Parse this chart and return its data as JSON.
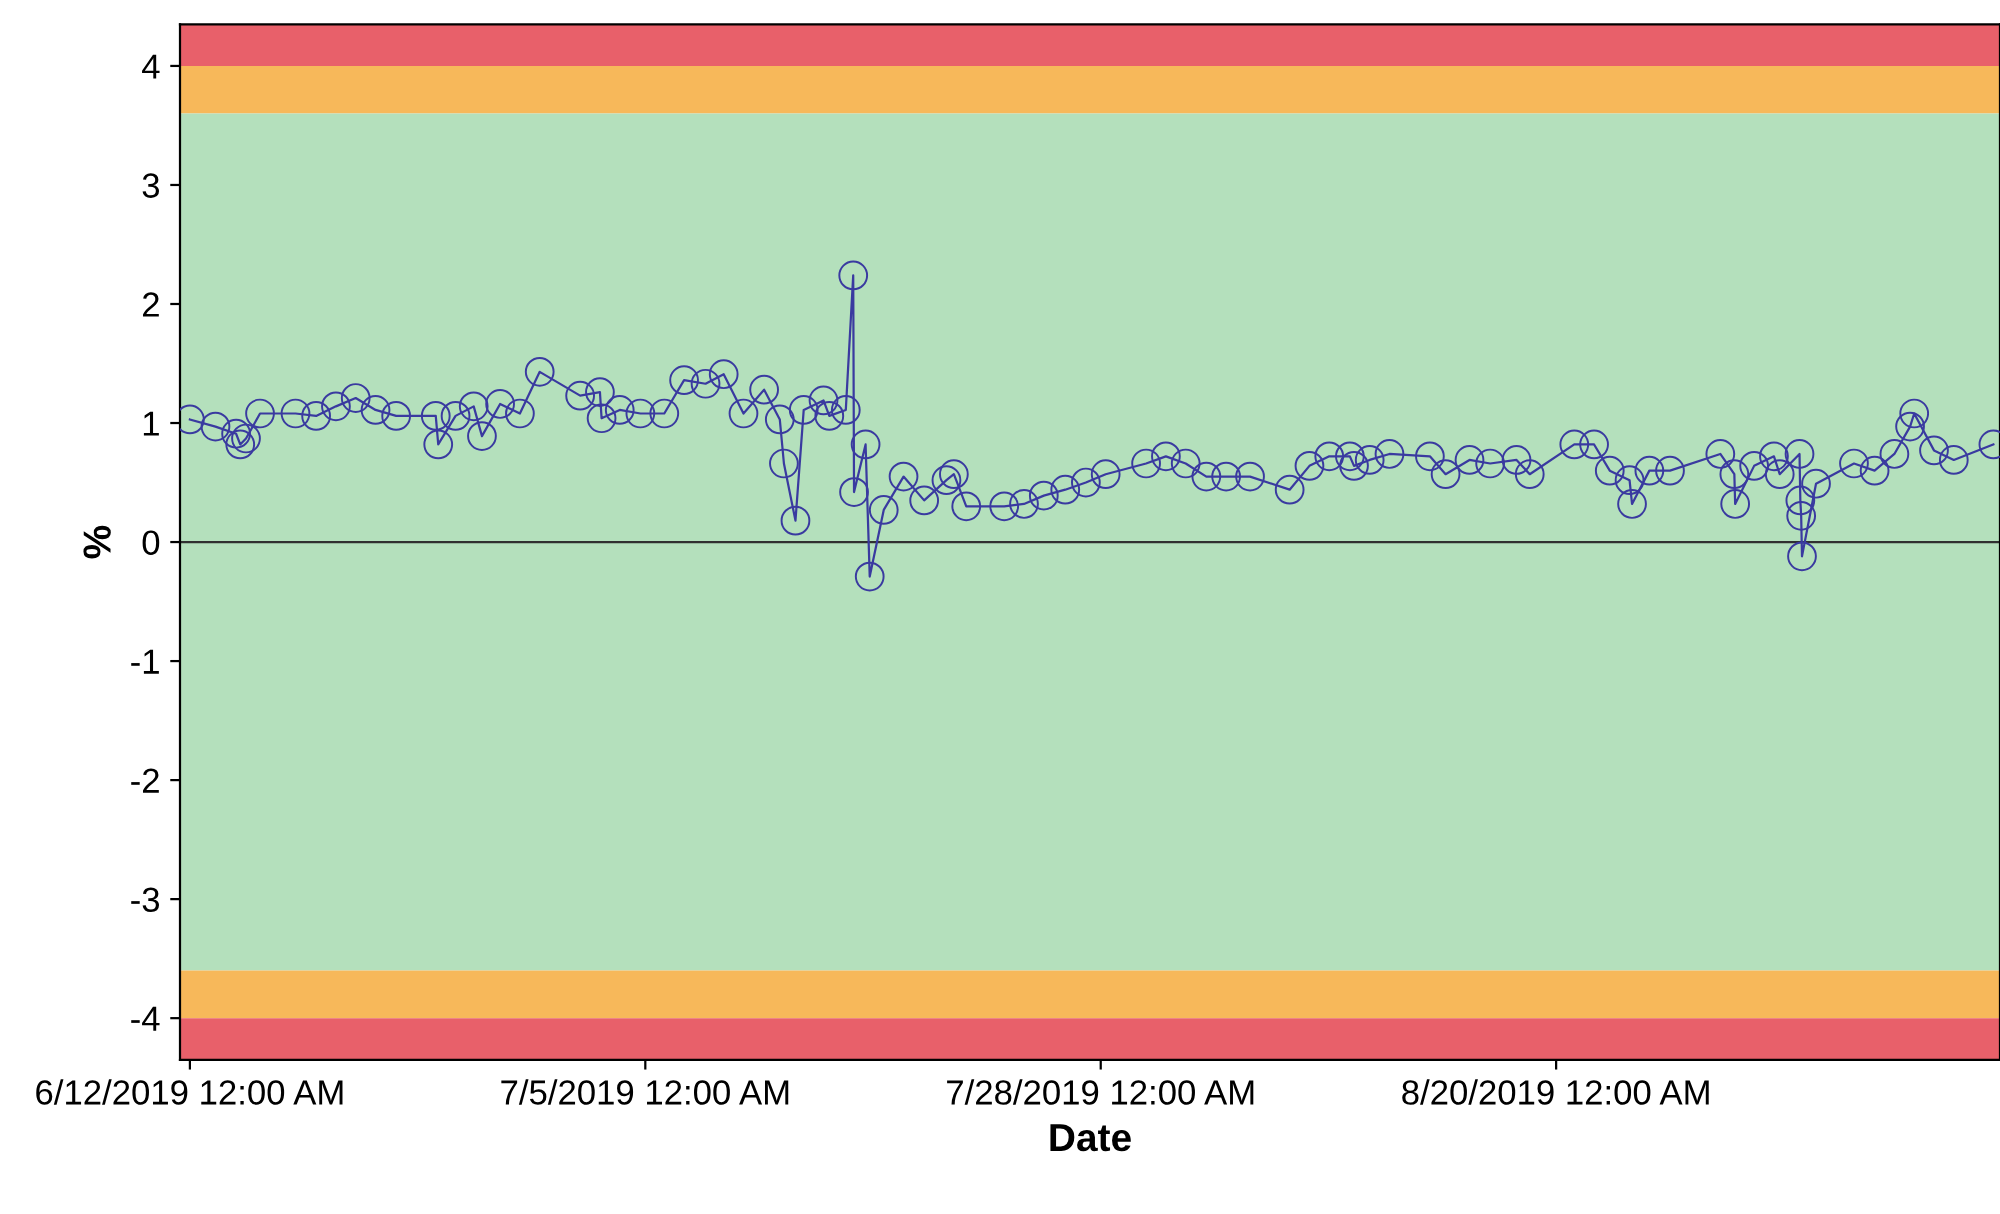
{
  "chart_data": {
    "type": "line",
    "xlabel": "Date",
    "ylabel": "%",
    "x": [
      "2019-06-12T00:00",
      "2019-06-13T07:00",
      "2019-06-14T08:00",
      "2019-06-14T13:00",
      "2019-06-14T20:00",
      "2019-06-15T13:00",
      "2019-06-17T08:00",
      "2019-06-18T09:00",
      "2019-06-19T09:00",
      "2019-06-20T09:00",
      "2019-06-21T09:00",
      "2019-06-22T10:00",
      "2019-06-24T10:00",
      "2019-06-24T13:00",
      "2019-06-25T10:00",
      "2019-06-26T08:00",
      "2019-06-26T18:00",
      "2019-06-27T16:00",
      "2019-06-28T16:00",
      "2019-06-29T16:00",
      "2019-07-01T17:00",
      "2019-07-02T17:00",
      "2019-07-02T19:00",
      "2019-07-03T17:00",
      "2019-07-04T18:00",
      "2019-07-05T23:00",
      "2019-07-06T23:00",
      "2019-07-08T01:00",
      "2019-07-08T23:00",
      "2019-07-09T23:00",
      "2019-07-11T00:00",
      "2019-07-11T19:00",
      "2019-07-12T00:00",
      "2019-07-12T14:00",
      "2019-07-13T00:00",
      "2019-07-14T00:00",
      "2019-07-14T07:00",
      "2019-07-15T03:00",
      "2019-07-15T12:00",
      "2019-07-15T13:00",
      "2019-07-16T03:00",
      "2019-07-16T08:00",
      "2019-07-17T01:00",
      "2019-07-18T01:00",
      "2019-07-19T02:00",
      "2019-07-20T05:00",
      "2019-07-20T14:00",
      "2019-07-21T05:00",
      "2019-07-23T03:00",
      "2019-07-24T03:00",
      "2019-07-25T03:00",
      "2019-07-26T05:00",
      "2019-07-27T06:00",
      "2019-07-28T06:00",
      "2019-07-30T07:00",
      "2019-07-31T07:00",
      "2019-08-01T07:00",
      "2019-08-02T08:00",
      "2019-08-03T08:00",
      "2019-08-04T13:00",
      "2019-08-06T13:00",
      "2019-08-07T13:00",
      "2019-08-08T13:00",
      "2019-08-09T14:00",
      "2019-08-09T19:00",
      "2019-08-10T14:00",
      "2019-08-11T14:00",
      "2019-08-13T15:00",
      "2019-08-14T10:00",
      "2019-08-15T15:00",
      "2019-08-16T16:00",
      "2019-08-18T00:00",
      "2019-08-18T16:00",
      "2019-08-20T22:00",
      "2019-08-21T22:00",
      "2019-08-22T17:00",
      "2019-08-23T17:00",
      "2019-08-23T20:00",
      "2019-08-24T17:00",
      "2019-08-25T18:00",
      "2019-08-28T07:00",
      "2019-08-29T00:00",
      "2019-08-29T01:00",
      "2019-08-30T00:00",
      "2019-08-31T00:00",
      "2019-08-31T07:00",
      "2019-09-01T07:00",
      "2019-09-01T08:00",
      "2019-09-01T09:00",
      "2019-09-01T10:00",
      "2019-09-02T03:00",
      "2019-09-04T01:00",
      "2019-09-05T02:00",
      "2019-09-06T02:00",
      "2019-09-06T21:00",
      "2019-09-07T02:00",
      "2019-09-08T02:00",
      "2019-09-09T02:00",
      "2019-09-11T02:00"
    ],
    "series": [
      {
        "color": "#3a3aa0",
        "values": [
          1.03,
          0.97,
          0.91,
          0.82,
          0.87,
          1.08,
          1.08,
          1.06,
          1.14,
          1.21,
          1.11,
          1.06,
          1.06,
          0.82,
          1.06,
          1.14,
          0.89,
          1.16,
          1.08,
          1.43,
          1.23,
          1.26,
          1.04,
          1.11,
          1.08,
          1.08,
          1.36,
          1.33,
          1.41,
          1.08,
          1.28,
          1.03,
          0.66,
          0.18,
          1.11,
          1.19,
          1.06,
          1.11,
          2.24,
          0.42,
          0.82,
          -0.29,
          0.27,
          0.55,
          0.35,
          0.52,
          0.57,
          0.3,
          0.3,
          0.32,
          0.39,
          0.44,
          0.5,
          0.57,
          0.66,
          0.72,
          0.66,
          0.55,
          0.55,
          0.55,
          0.44,
          0.64,
          0.72,
          0.72,
          0.64,
          0.69,
          0.74,
          0.72,
          0.57,
          0.69,
          0.66,
          0.69,
          0.57,
          0.82,
          0.82,
          0.6,
          0.52,
          0.32,
          0.6,
          0.6,
          0.74,
          0.57,
          0.32,
          0.64,
          0.72,
          0.57,
          0.74,
          0.35,
          0.22,
          -0.12,
          0.49,
          0.66,
          0.6,
          0.74,
          0.97,
          1.08,
          0.77,
          0.69,
          0.82
        ]
      }
    ],
    "xlim": [
      "2019-06-11T12:00",
      "2019-09-11T10:00"
    ],
    "xticks": [
      {
        "value": "2019-06-12",
        "label": "6/12/2019 12:00 AM"
      },
      {
        "value": "2019-07-05",
        "label": "7/5/2019 12:00 AM"
      },
      {
        "value": "2019-07-28",
        "label": "7/28/2019 12:00 AM"
      },
      {
        "value": "2019-08-20",
        "label": "8/20/2019 12:00 AM"
      }
    ],
    "ylim": [
      -4.35,
      4.35
    ],
    "yticks": [
      -4,
      -3,
      -2,
      -1,
      0,
      1,
      2,
      3,
      4
    ],
    "bands": [
      {
        "axis": "y",
        "from": 4,
        "to": 4.35,
        "color": "#e8606a"
      },
      {
        "axis": "y",
        "from": 3.6,
        "to": 4,
        "color": "#f7b85a"
      },
      {
        "axis": "y",
        "from": -3.6,
        "to": 3.6,
        "color": "#b4e0bc"
      },
      {
        "axis": "y",
        "from": -4,
        "to": -3.6,
        "color": "#f7b85a"
      },
      {
        "axis": "y",
        "from": -4.35,
        "to": -4,
        "color": "#e8606a"
      }
    ],
    "ref_lines": [
      {
        "axis": "y",
        "value": 0,
        "color": "#303030"
      }
    ],
    "marker": "circle",
    "line_style": "solid",
    "grid": false
  }
}
